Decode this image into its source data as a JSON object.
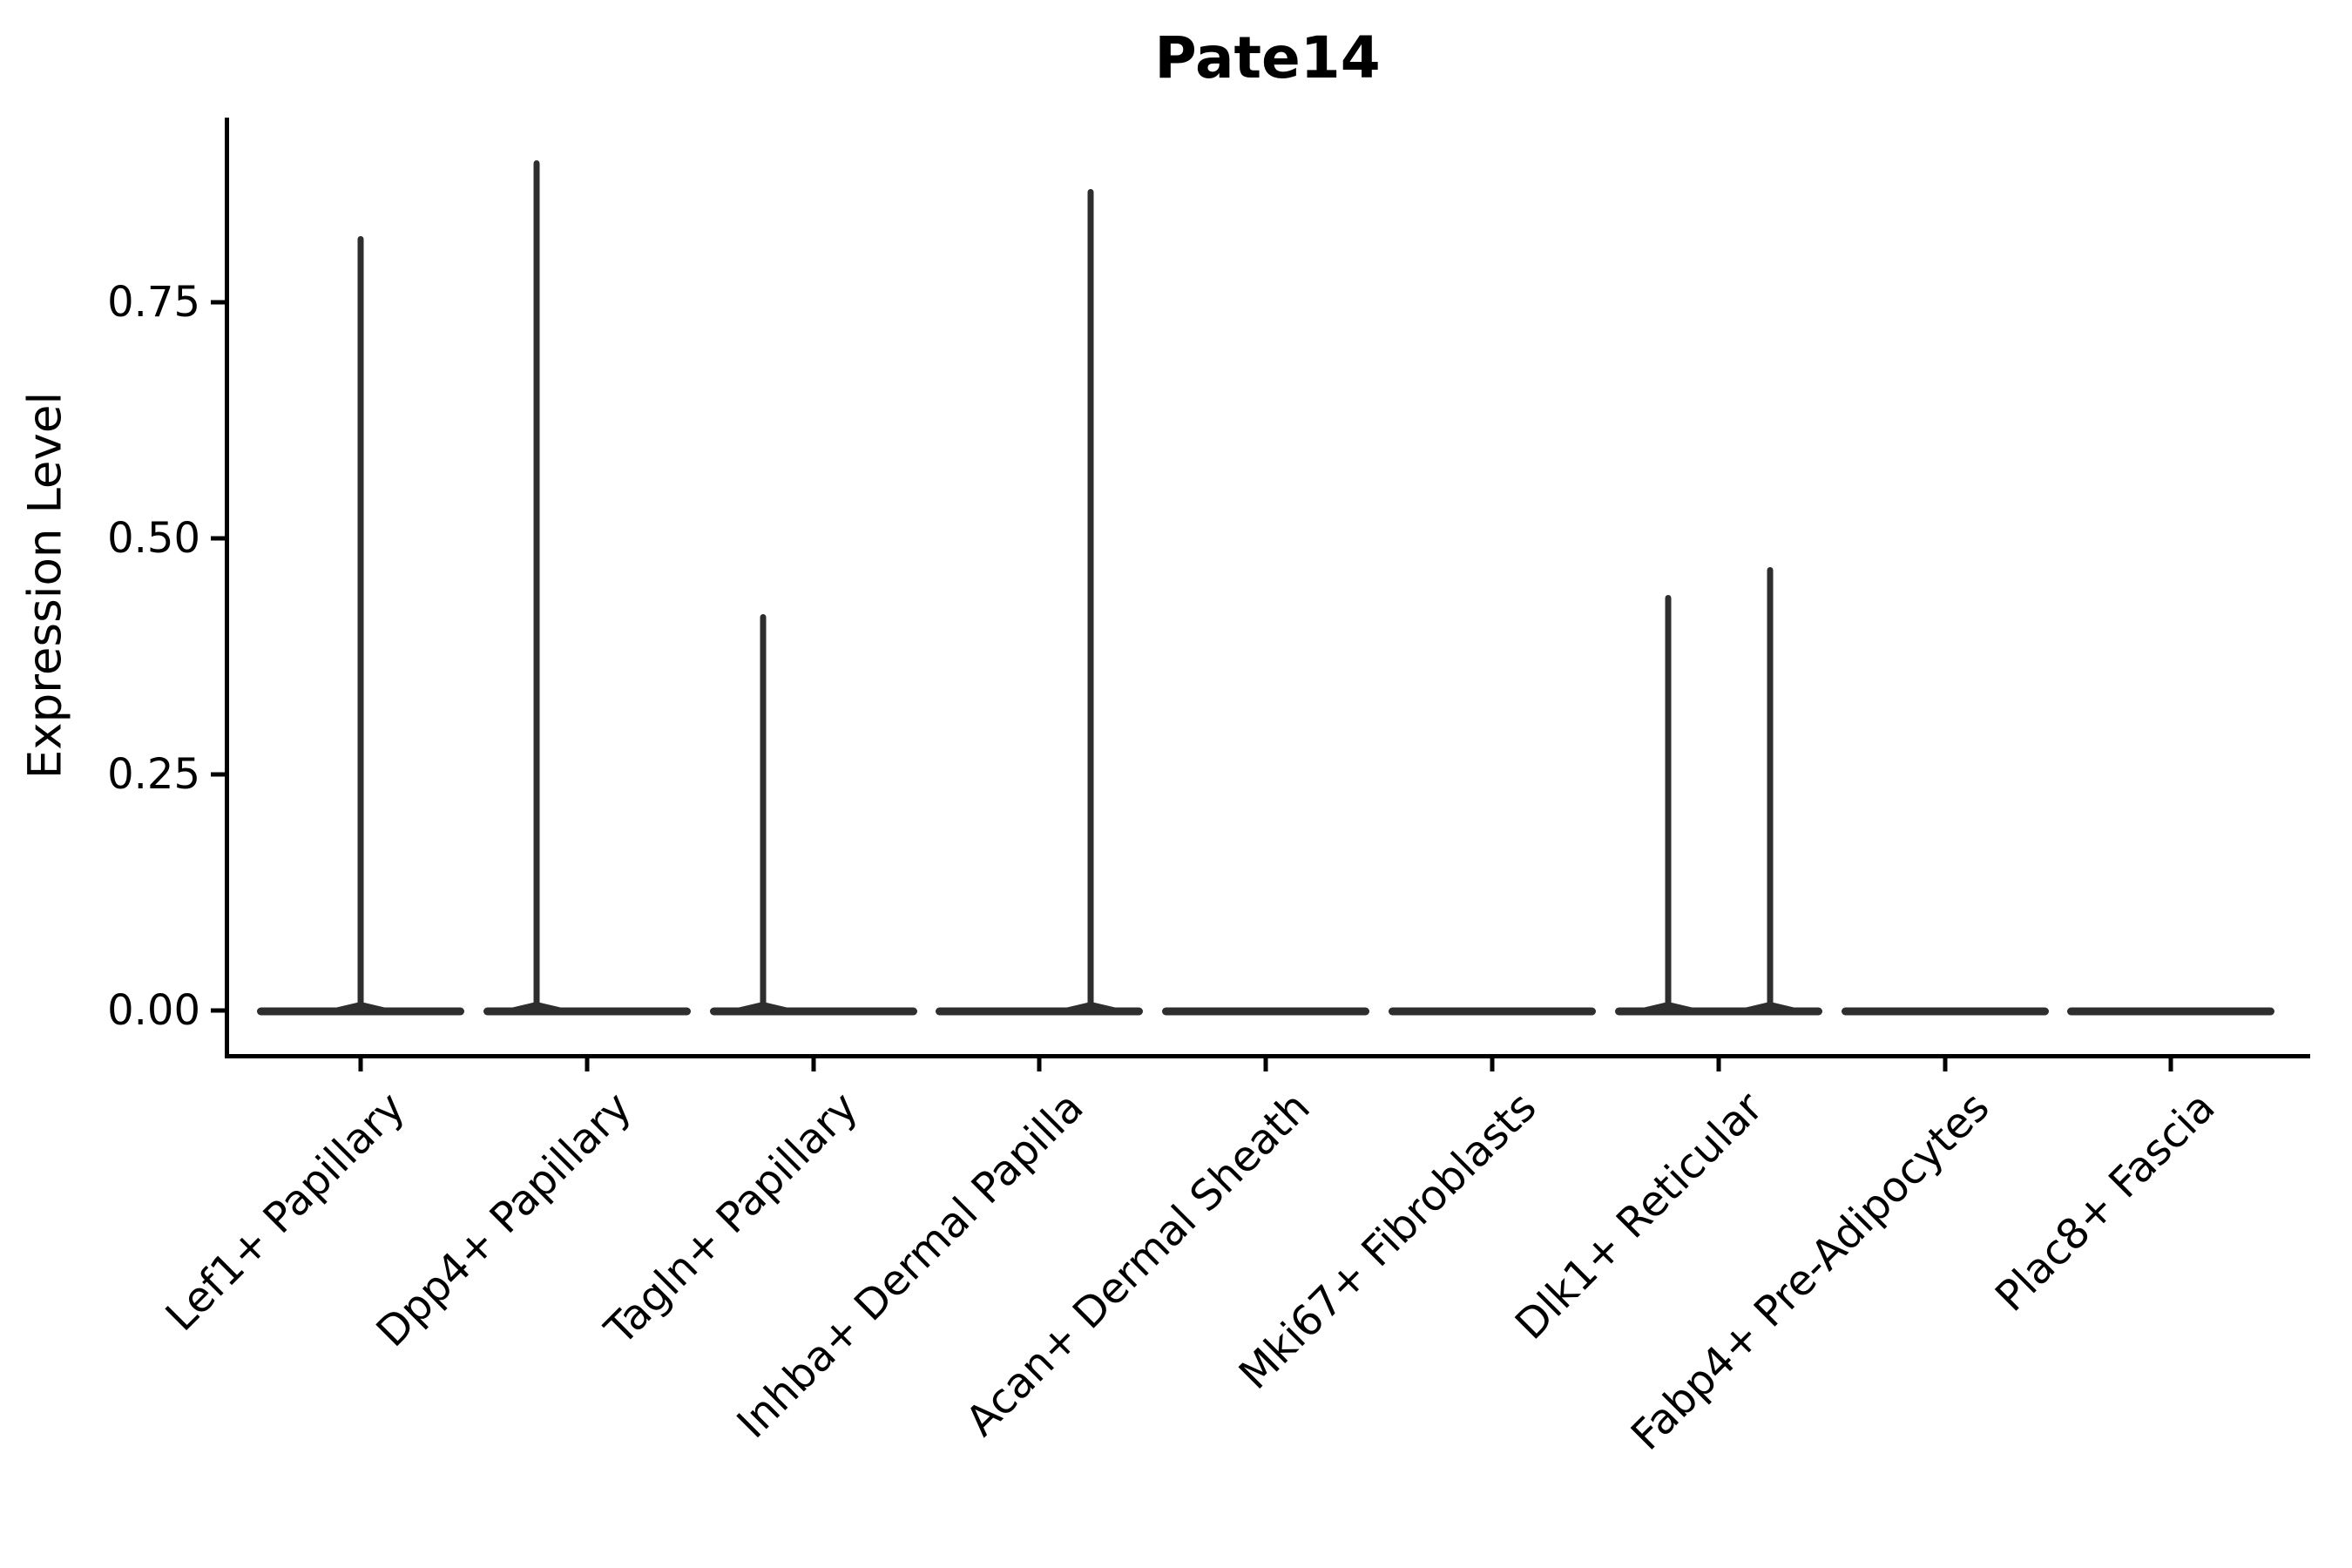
{
  "title": "Pate14",
  "y_axis": {
    "label": "Expression Level",
    "tick_labels": [
      "0.00",
      "0.25",
      "0.50",
      "0.75"
    ],
    "tick_values": [
      0.0,
      0.25,
      0.5,
      0.75
    ]
  },
  "chart_data": {
    "type": "violin",
    "title": "Pate14",
    "xlabel": "",
    "ylabel": "Expression Level",
    "ylim": [
      0,
      0.945
    ],
    "yticks": [
      0.0,
      0.25,
      0.5,
      0.75
    ],
    "grid": false,
    "legend": false,
    "categories": [
      "Lef1+ Papillary",
      "Dpp4+ Papillary",
      "Tagln+ Papillary",
      "Inhba+ Dermal Papilla",
      "Acan+ Dermal Sheath",
      "Mki67+ Fibroblasts",
      "Dlk1+ Reticular",
      "Fabp4+ Pre-Adipocytes",
      "Plac8+ Fascia"
    ],
    "series": [
      {
        "category": "Lef1+ Papillary",
        "bulk_at_zero": true,
        "spikes": [
          {
            "value": 0.82,
            "offset_frac": 0.0
          }
        ]
      },
      {
        "category": "Dpp4+ Papillary",
        "bulk_at_zero": true,
        "spikes": [
          {
            "value": 0.9,
            "offset_frac": -0.223
          }
        ]
      },
      {
        "category": "Tagln+ Papillary",
        "bulk_at_zero": true,
        "spikes": [
          {
            "value": 0.42,
            "offset_frac": -0.223
          }
        ]
      },
      {
        "category": "Inhba+ Dermal Papilla",
        "bulk_at_zero": true,
        "spikes": [
          {
            "value": 0.87,
            "offset_frac": 0.227
          }
        ]
      },
      {
        "category": "Acan+ Dermal Sheath",
        "bulk_at_zero": true,
        "spikes": []
      },
      {
        "category": "Mki67+ Fibroblasts",
        "bulk_at_zero": true,
        "spikes": []
      },
      {
        "category": "Dlk1+ Reticular",
        "bulk_at_zero": true,
        "spikes": [
          {
            "value": 0.44,
            "offset_frac": -0.223
          },
          {
            "value": 0.47,
            "offset_frac": 0.227
          }
        ]
      },
      {
        "category": "Fabp4+ Pre-Adipocytes",
        "bulk_at_zero": true,
        "spikes": []
      },
      {
        "category": "Plac8+ Fascia",
        "bulk_at_zero": true,
        "spikes": []
      }
    ],
    "colors": {
      "violin": "#2e2e2e",
      "axis": "#000000",
      "background": "#ffffff"
    }
  }
}
